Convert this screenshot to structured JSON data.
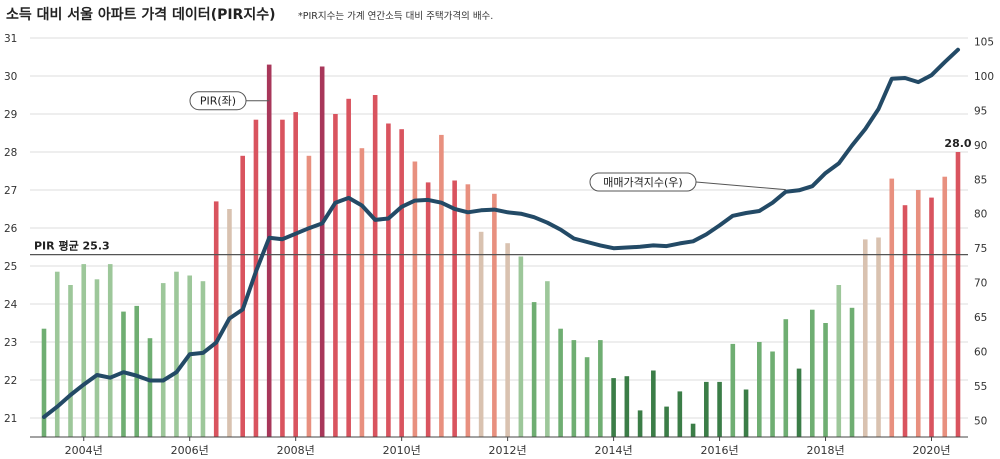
{
  "chart_data": {
    "type": "bar+line",
    "title": "소득 대비 서울 아파트 가격 데이터(PIR지수)",
    "subtitle": "*PIR지수는 가계 연간소득 대비 주택가격의 배수.",
    "x_tick_labels": [
      "2004년",
      "2006년",
      "2008년",
      "2010년",
      "2012년",
      "2014년",
      "2016년",
      "2018년",
      "2020년"
    ],
    "y_left": {
      "min": 20.5,
      "max": 31,
      "ticks": [
        21,
        22,
        23,
        24,
        25,
        26,
        27,
        28,
        29,
        30,
        31
      ]
    },
    "y_right": {
      "min": 47.6,
      "max": 105.5,
      "ticks": [
        50,
        55,
        60,
        65,
        70,
        75,
        80,
        85,
        90,
        95,
        100,
        105
      ]
    },
    "bars_pir": [
      23.35,
      24.85,
      24.5,
      25.05,
      24.65,
      25.05,
      23.8,
      23.95,
      23.1,
      24.55,
      24.85,
      24.75,
      24.6,
      26.7,
      26.5,
      27.9,
      28.85,
      30.3,
      28.85,
      29.05,
      27.9,
      30.25,
      29.0,
      29.4,
      28.1,
      29.5,
      28.75,
      28.6,
      27.75,
      27.2,
      28.45,
      27.25,
      27.15,
      25.9,
      26.9,
      25.6,
      25.25,
      24.05,
      24.6,
      23.35,
      23.05,
      22.6,
      23.05,
      22.05,
      22.1,
      21.2,
      22.25,
      21.3,
      21.7,
      20.85,
      21.95,
      21.95,
      22.95,
      21.75,
      23.0,
      22.75,
      23.6,
      22.3,
      23.85,
      23.5,
      24.5,
      23.9,
      25.7,
      25.75,
      27.3,
      26.6,
      27.0,
      26.8,
      27.35,
      28.0
    ],
    "pir_average": 25.3,
    "line_price_index": [
      50.5,
      52.0,
      53.7,
      55.2,
      56.6,
      56.2,
      57.0,
      56.5,
      55.8,
      55.8,
      57.0,
      59.6,
      59.8,
      61.3,
      64.8,
      66.1,
      71.6,
      76.5,
      76.3,
      77.1,
      77.9,
      78.6,
      81.6,
      82.3,
      81.2,
      79.1,
      79.3,
      81.0,
      81.9,
      82.0,
      81.6,
      80.7,
      80.2,
      80.5,
      80.6,
      80.2,
      80.0,
      79.5,
      78.7,
      77.7,
      76.4,
      75.9,
      75.4,
      75.0,
      75.1,
      75.2,
      75.4,
      75.3,
      75.7,
      76.0,
      77.0,
      78.3,
      79.7,
      80.1,
      80.4,
      81.6,
      83.2,
      83.4,
      84.0,
      85.9,
      87.3,
      89.9,
      92.3,
      95.2,
      99.6,
      99.7,
      99.1,
      100.1,
      102.0,
      103.8
    ],
    "series_names": [
      "PIR(좌)",
      "매매가격지수(우)"
    ],
    "annotations": {
      "average_label": "PIR 평균 25.3",
      "last_value_label": "28.0"
    },
    "colors": {
      "line": "#234a66",
      "green_light": "#9dc79a",
      "green_mid": "#6fae72",
      "green_dark": "#3b7d47",
      "beige": "#d9c2b0",
      "salmon": "#e8907f",
      "red": "#d9545f",
      "crimson": "#a8375a"
    },
    "grid": true
  }
}
